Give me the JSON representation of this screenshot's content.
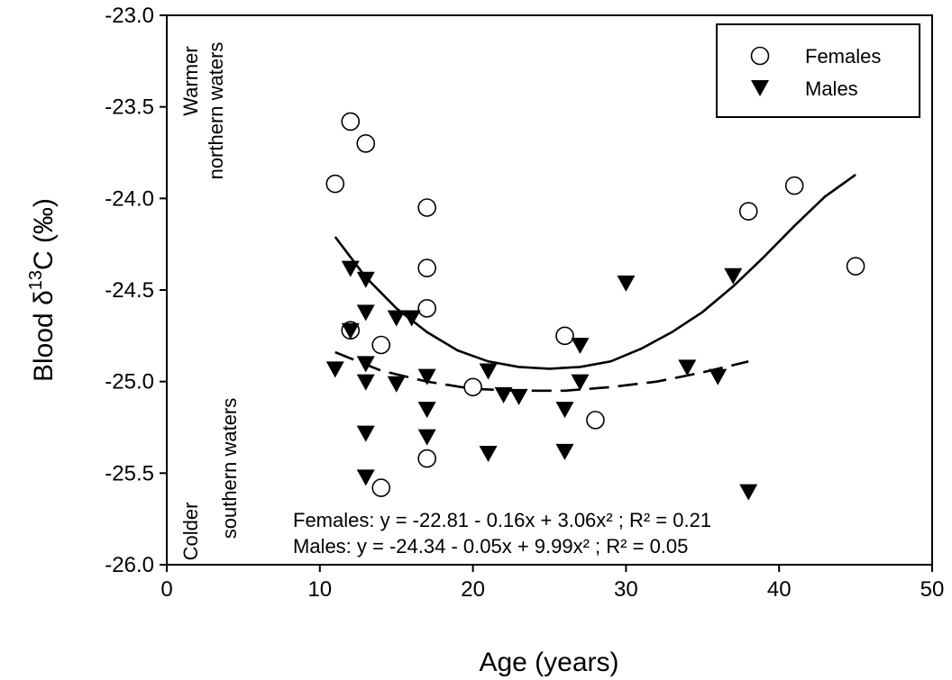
{
  "chart_data": {
    "type": "scatter",
    "title": "",
    "xlabel": "Age (years)",
    "ylabel_prefix": "Blood δ",
    "ylabel_sup": "13",
    "ylabel_suffix": "C (‰)",
    "xlim": [
      0,
      50
    ],
    "ylim": [
      -26.0,
      -23.0
    ],
    "x_ticks": [
      0,
      10,
      20,
      30,
      40,
      50
    ],
    "y_ticks": [
      -26.0,
      -25.5,
      -25.0,
      -24.5,
      -24.0,
      -23.5,
      -23.0
    ],
    "x_tick_labels": [
      "0",
      "10",
      "20",
      "30",
      "40",
      "50"
    ],
    "y_tick_labels": [
      "-26.0",
      "-25.5",
      "-25.0",
      "-24.5",
      "-24.0",
      "-23.5",
      "-23.0"
    ],
    "grid": false,
    "legend_position": "top-right",
    "series": [
      {
        "name": "Females",
        "marker": "open-circle",
        "points": [
          [
            11,
            -23.92
          ],
          [
            12,
            -23.58
          ],
          [
            13,
            -23.7
          ],
          [
            12,
            -24.72
          ],
          [
            14,
            -24.8
          ],
          [
            17,
            -24.05
          ],
          [
            17,
            -24.38
          ],
          [
            17,
            -24.6
          ],
          [
            17,
            -25.42
          ],
          [
            14,
            -25.58
          ],
          [
            20,
            -25.03
          ],
          [
            26,
            -24.75
          ],
          [
            28,
            -25.21
          ],
          [
            38,
            -24.07
          ],
          [
            41,
            -23.93
          ],
          [
            45,
            -24.37
          ]
        ],
        "fit": {
          "style": "solid",
          "x": [
            11,
            13,
            15,
            17,
            19,
            21,
            23,
            25,
            27,
            29,
            31,
            33,
            35,
            37,
            39,
            41,
            43,
            45
          ],
          "y": [
            -24.21,
            -24.43,
            -24.6,
            -24.73,
            -24.83,
            -24.89,
            -24.92,
            -24.93,
            -24.92,
            -24.89,
            -24.82,
            -24.73,
            -24.62,
            -24.48,
            -24.32,
            -24.15,
            -23.99,
            -23.87
          ]
        }
      },
      {
        "name": "Males",
        "marker": "filled-triangle-down",
        "points": [
          [
            11,
            -24.93
          ],
          [
            12,
            -24.38
          ],
          [
            12,
            -24.72
          ],
          [
            13,
            -24.44
          ],
          [
            13,
            -24.62
          ],
          [
            13,
            -24.9
          ],
          [
            13,
            -25.0
          ],
          [
            13,
            -25.28
          ],
          [
            13,
            -25.52
          ],
          [
            15,
            -24.65
          ],
          [
            16,
            -24.65
          ],
          [
            15,
            -25.01
          ],
          [
            17,
            -24.97
          ],
          [
            17,
            -25.15
          ],
          [
            17,
            -25.3
          ],
          [
            21,
            -24.94
          ],
          [
            21,
            -25.39
          ],
          [
            22,
            -25.07
          ],
          [
            23,
            -25.08
          ],
          [
            26,
            -25.15
          ],
          [
            26,
            -25.38
          ],
          [
            27,
            -24.8
          ],
          [
            27,
            -25.0
          ],
          [
            30,
            -24.46
          ],
          [
            34,
            -24.92
          ],
          [
            36,
            -24.97
          ],
          [
            37,
            -24.42
          ],
          [
            38,
            -25.6
          ]
        ],
        "fit": {
          "style": "dashed",
          "x": [
            11,
            14,
            17,
            20,
            23,
            26,
            29,
            32,
            35,
            38
          ],
          "y": [
            -24.84,
            -24.94,
            -25.0,
            -25.04,
            -25.05,
            -25.05,
            -25.03,
            -25.0,
            -24.95,
            -24.89
          ]
        }
      }
    ],
    "annotations": {
      "warm_line1": "Warmer",
      "warm_line2": "northern waters",
      "cold_line1": "Colder",
      "cold_line2": "southern waters",
      "eq_females": "Females: y = -22.81 - 0.16x + 3.06x² ; R² = 0.21",
      "eq_males": "Males: y = -24.34 - 0.05x + 9.99x² ; R² = 0.05"
    }
  }
}
